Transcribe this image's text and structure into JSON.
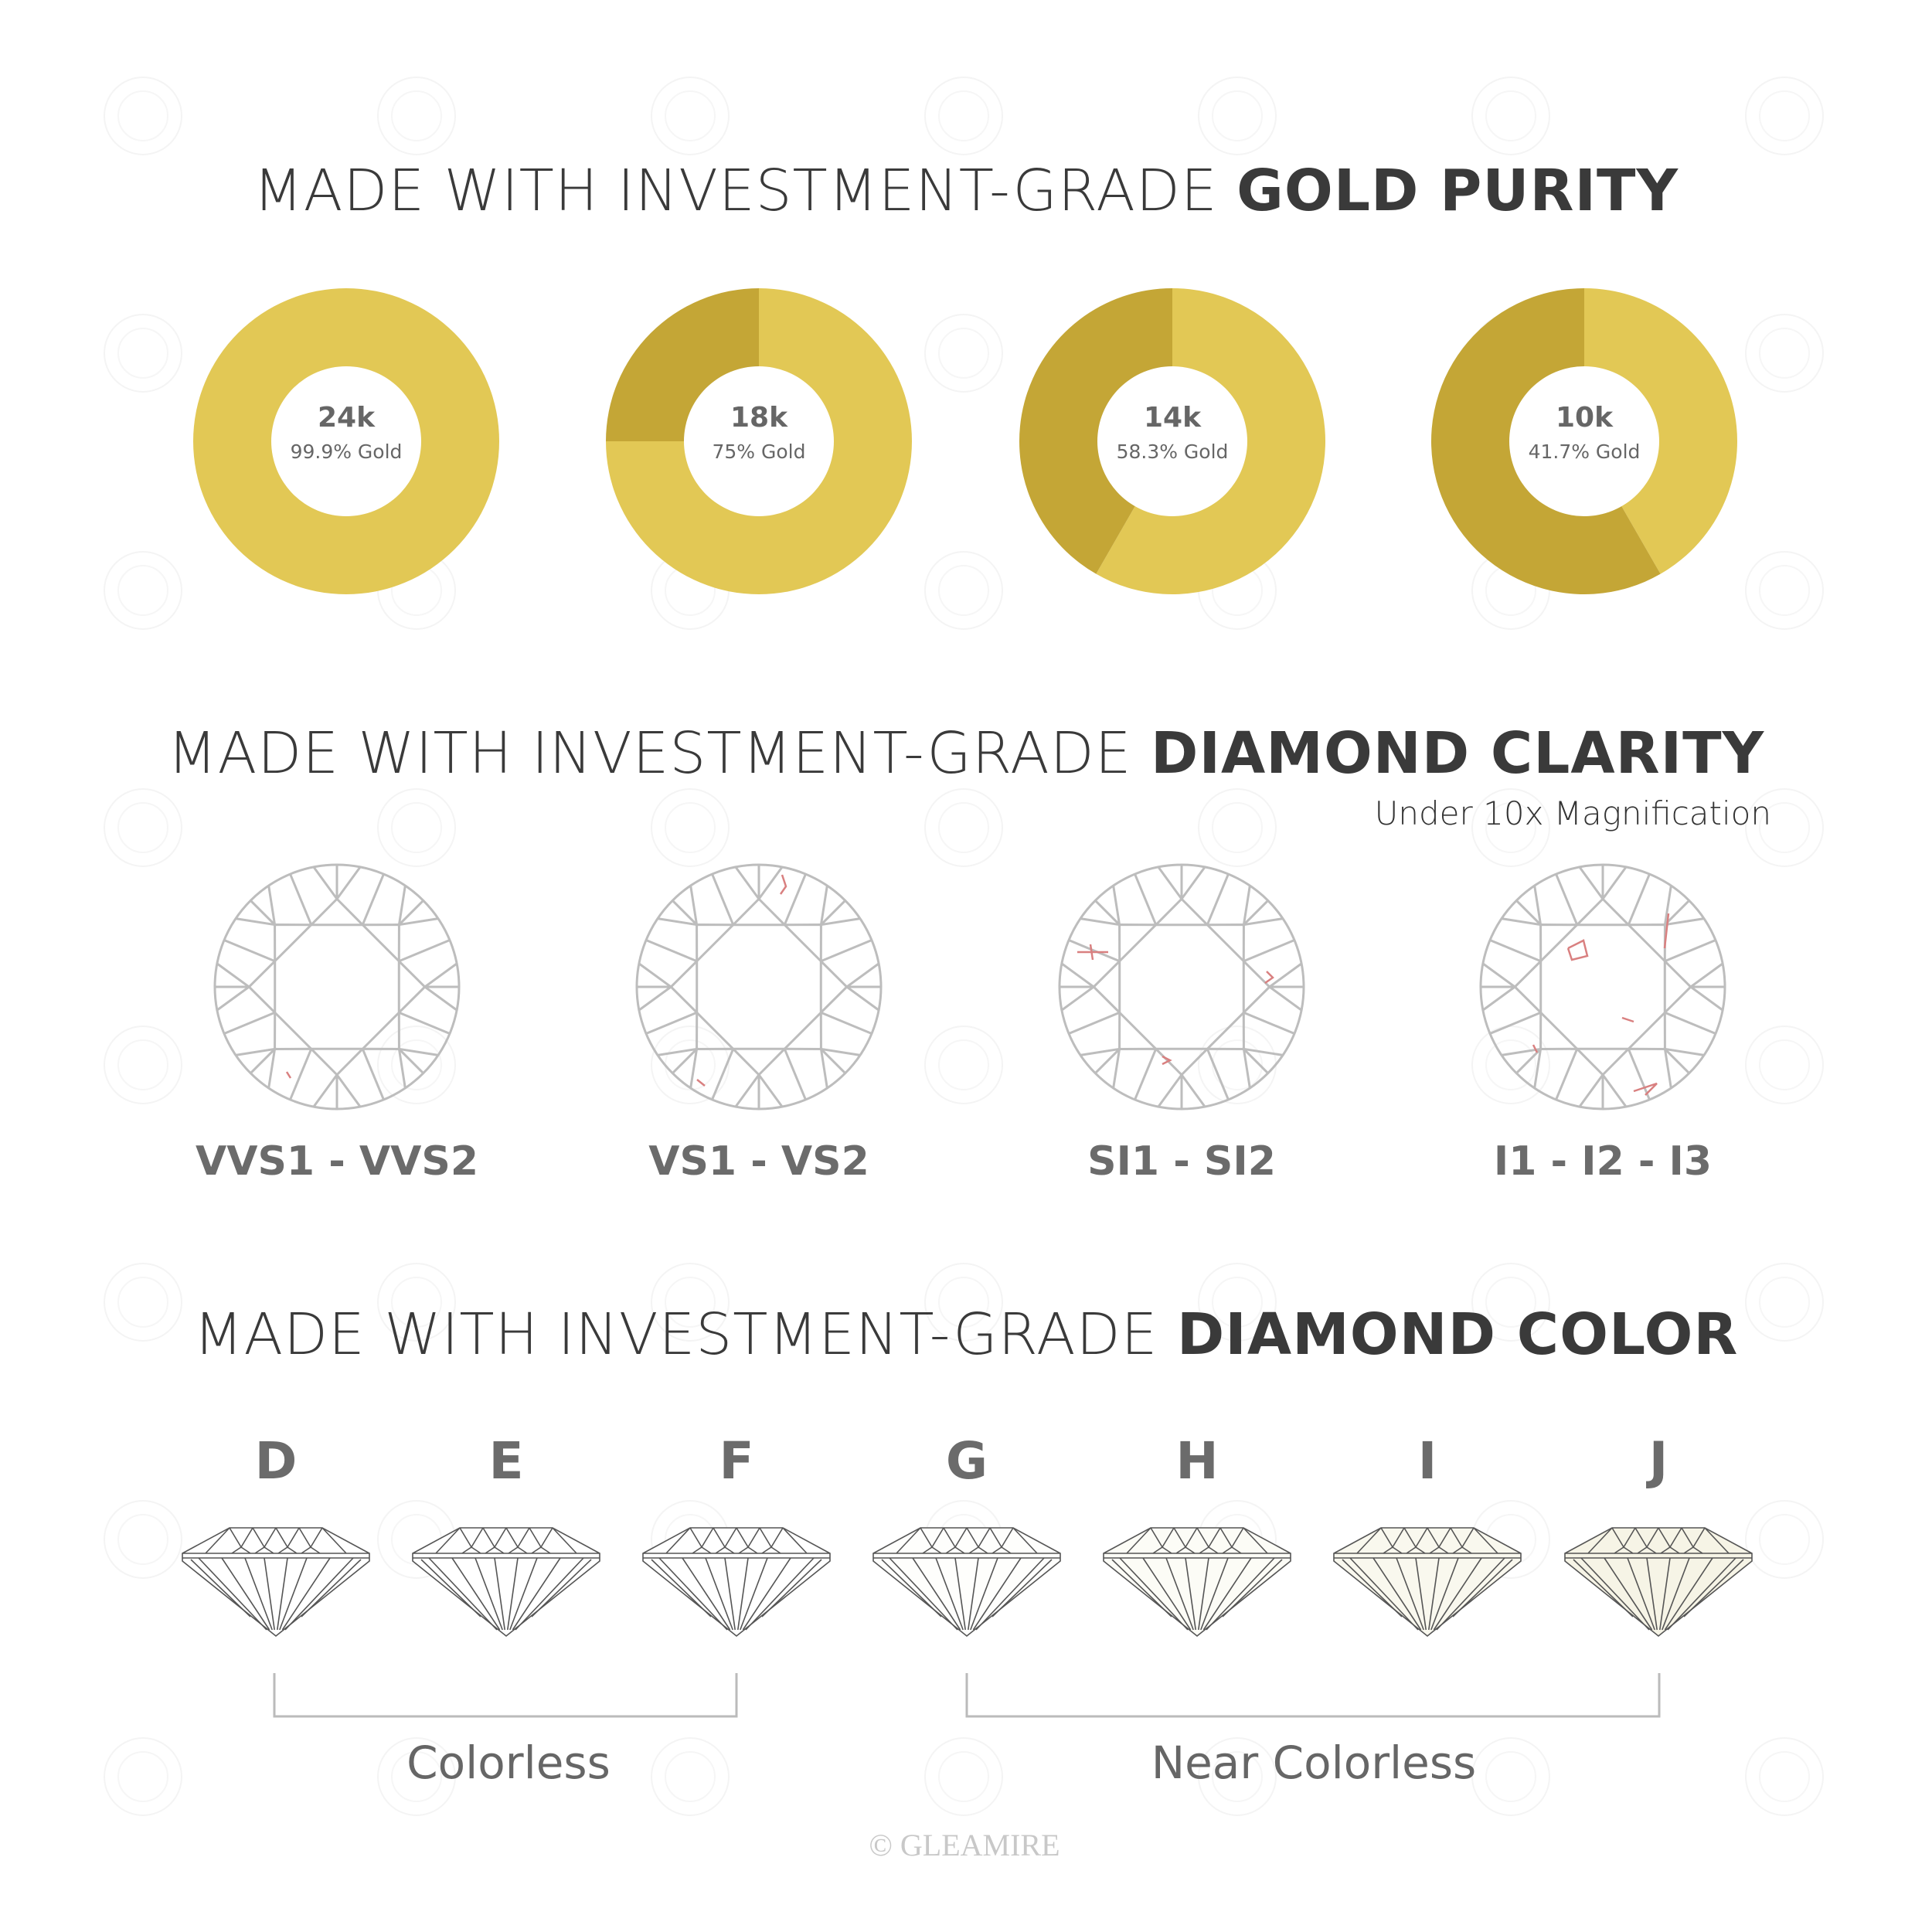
{
  "watermark": "GLEAMIRE",
  "colors": {
    "gold_light": "#E2C855",
    "gold_dark": "#C4A636",
    "line": "#bdbdbd",
    "inclusion": "#d98080",
    "text": "#3a3a3a",
    "label": "#6b6b6b"
  },
  "gold": {
    "title_regular": "MADE WITH INVESTMENT-GRADE ",
    "title_bold": "GOLD PURITY",
    "items": [
      {
        "karat": "24k",
        "label": "99.9% Gold",
        "percent": 99.9
      },
      {
        "karat": "18k",
        "label": "75% Gold",
        "percent": 75
      },
      {
        "karat": "14k",
        "label": "58.3% Gold",
        "percent": 58.3
      },
      {
        "karat": "10k",
        "label": "41.7% Gold",
        "percent": 41.7
      }
    ]
  },
  "clarity": {
    "title_regular": "MADE WITH INVESTMENT-GRADE ",
    "title_bold": "DIAMOND CLARITY",
    "subtitle": "Under 10x Magnification",
    "grades": [
      "VVS1 - VVS2",
      "VS1 - VS2",
      "SI1 - SI2",
      "I1 - I2 - I3"
    ]
  },
  "color": {
    "title_regular": "MADE WITH INVESTMENT-GRADE ",
    "title_bold": "DIAMOND COLOR",
    "grades": [
      {
        "letter": "D",
        "tint": "#ffffff"
      },
      {
        "letter": "E",
        "tint": "#ffffff"
      },
      {
        "letter": "F",
        "tint": "#ffffff"
      },
      {
        "letter": "G",
        "tint": "#fefefc"
      },
      {
        "letter": "H",
        "tint": "#fcfcf6"
      },
      {
        "letter": "I",
        "tint": "#f9f8ee"
      },
      {
        "letter": "J",
        "tint": "#f6f4e6"
      }
    ],
    "groups": [
      "Colorless",
      "Near Colorless"
    ]
  },
  "copyright": "© GLEAMIRE"
}
